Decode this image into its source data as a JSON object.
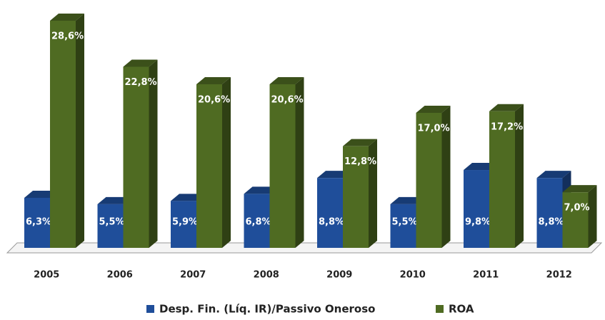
{
  "chart_data": {
    "type": "bar3d",
    "categories": [
      "2005",
      "2006",
      "2007",
      "2008",
      "2009",
      "2010",
      "2011",
      "2012"
    ],
    "series": [
      {
        "name": "Desp. Fin. (Líq. IR)/Passivo Oneroso",
        "color": "#1f4e9a",
        "values": [
          6.3,
          5.5,
          5.9,
          6.8,
          8.8,
          5.5,
          9.8,
          8.8
        ],
        "value_labels": [
          "6,3%",
          "5,5%",
          "5,9%",
          "6,8%",
          "8,8%",
          "5,5%",
          "9,8%",
          "8,8%"
        ]
      },
      {
        "name": "ROA",
        "color": "#4f6b22",
        "values": [
          28.6,
          22.8,
          20.6,
          20.6,
          12.8,
          17.0,
          17.2,
          7.0
        ],
        "value_labels": [
          "28,6%",
          "22,8%",
          "20,6%",
          "20,6%",
          "12,8%",
          "17,0%",
          "17,2%",
          "7,0%"
        ]
      }
    ],
    "legend": "bottom"
  }
}
